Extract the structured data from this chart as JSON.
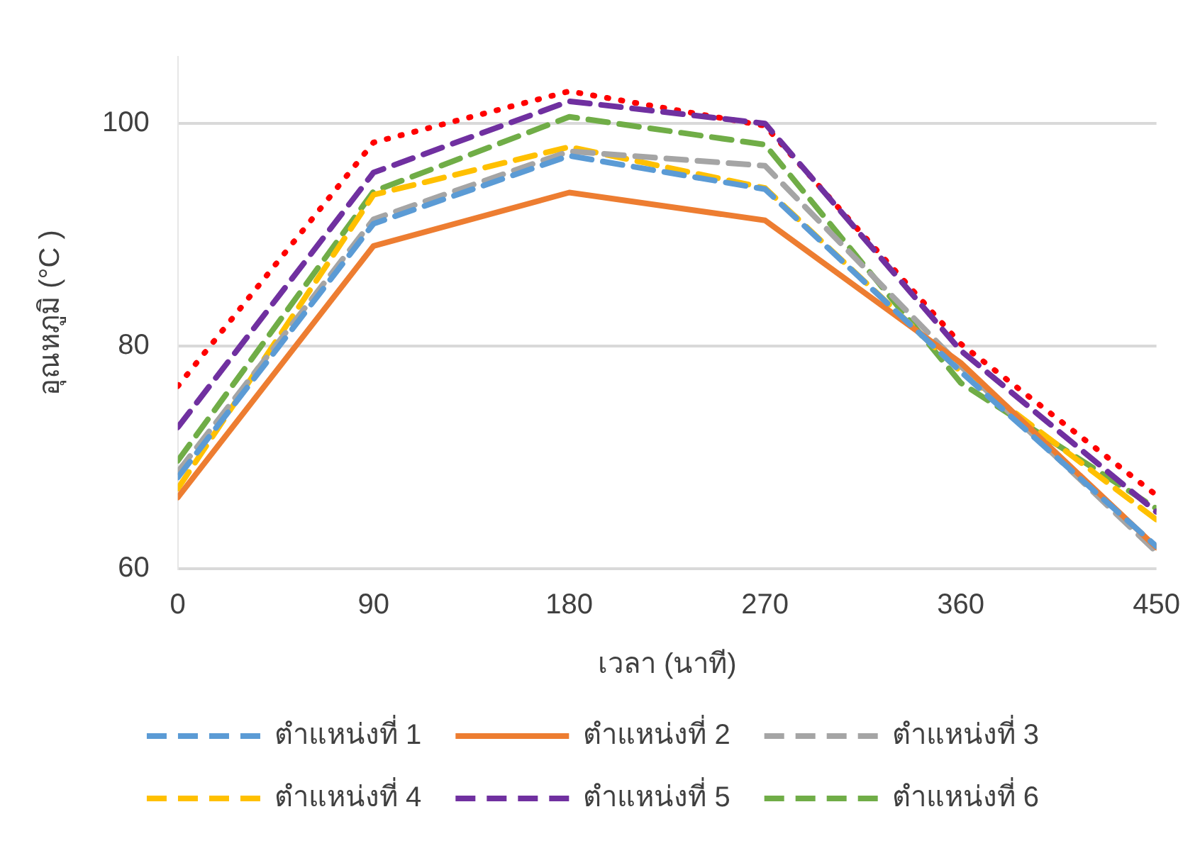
{
  "chart_data": {
    "type": "line",
    "xlabel": "เวลา (นาที)",
    "ylabel": "อุณหภูมิ (°C )",
    "x": [
      0,
      90,
      180,
      270,
      360,
      450
    ],
    "xlim": [
      0,
      450
    ],
    "xticks": [
      0,
      90,
      180,
      270,
      360,
      450
    ],
    "ylim": [
      60,
      106
    ],
    "yticks": [
      60,
      80,
      100
    ],
    "grid": "y",
    "legend": "bottom",
    "marker": "none",
    "series": [
      {
        "name": "ตำแหน่งที่ 1",
        "color": "#5b9bd5",
        "line_style": "dashed",
        "values": [
          68.2,
          91.0,
          97.1,
          94.1,
          77.7,
          62.0
        ]
      },
      {
        "name": "ตำแหน่งที่ 2",
        "color": "#ed7d31",
        "line_style": "solid",
        "values": [
          66.4,
          89.0,
          93.8,
          91.3,
          78.5,
          61.9
        ]
      },
      {
        "name": "ตำแหน่งที่ 3",
        "color": "#a5a5a5",
        "line_style": "dashed",
        "values": [
          68.7,
          91.4,
          97.5,
          96.2,
          78.2,
          61.5
        ]
      },
      {
        "name": "ตำแหน่งที่ 4",
        "color": "#ffc000",
        "line_style": "dashed",
        "values": [
          67.2,
          93.6,
          97.9,
          94.2,
          77.7,
          64.4
        ]
      },
      {
        "name": "ตำแหน่งที่ 5",
        "color": "#7030a0",
        "line_style": "dashed",
        "values": [
          72.7,
          95.6,
          102.0,
          100.0,
          79.6,
          65.1
        ]
      },
      {
        "name": "ตำแหน่งที่ 6",
        "color": "#70ad47",
        "line_style": "dashed",
        "values": [
          69.7,
          93.9,
          100.6,
          98.1,
          76.7,
          65.4
        ]
      },
      {
        "color": "#ff0000",
        "line_style": "dotted",
        "values": [
          76.4,
          98.3,
          102.9,
          99.8,
          80.2,
          66.6
        ]
      }
    ]
  }
}
